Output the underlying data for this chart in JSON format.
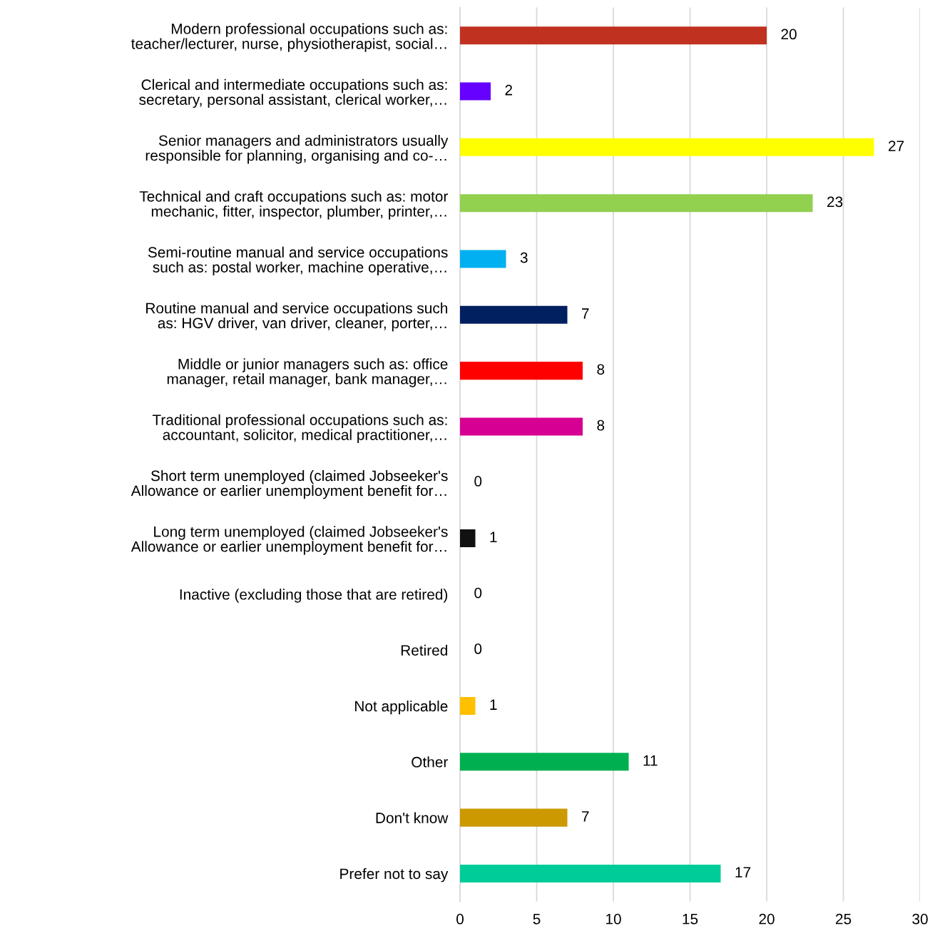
{
  "chart_data": {
    "type": "bar",
    "orientation": "horizontal",
    "categories": [
      "Modern professional occupations such as:\nteacher/lecturer, nurse, physiotherapist, social…",
      "Clerical and intermediate occupations such as:\nsecretary, personal assistant, clerical worker,…",
      "Senior managers and administrators usually\nresponsible for planning, organising and co-…",
      "Technical and craft occupations such as: motor\nmechanic, fitter, inspector, plumber, printer,…",
      "Semi-routine manual and service occupations\nsuch as: postal worker, machine operative,…",
      "Routine manual and service occupations such\nas: HGV driver, van driver, cleaner, porter,…",
      "Middle or junior managers such as: office\nmanager, retail manager, bank manager,…",
      "Traditional professional occupations such as:\naccountant, solicitor, medical practitioner,…",
      "Short term unemployed (claimed Jobseeker's\nAllowance or earlier unemployment benefit for…",
      "Long term unemployed (claimed Jobseeker's\nAllowance or earlier unemployment benefit for…",
      "Inactive (excluding those that are retired)",
      "Retired",
      "Not applicable",
      "Other",
      "Don't know",
      "Prefer not to say"
    ],
    "values": [
      20,
      2,
      27,
      23,
      3,
      7,
      8,
      8,
      0,
      1,
      0,
      0,
      1,
      11,
      7,
      17
    ],
    "colors": [
      "#c0311f",
      "#6600ff",
      "#ffff00",
      "#92d050",
      "#00b0f0",
      "#002060",
      "#ff0000",
      "#d60093",
      "#a5a5a5",
      "#111111",
      "#a5a5a5",
      "#a5a5a5",
      "#ffc000",
      "#00b050",
      "#cc9900",
      "#00cc99"
    ],
    "xlim": [
      0,
      30
    ],
    "xticks": [
      0,
      5,
      10,
      15,
      20,
      25,
      30
    ],
    "grid": "x",
    "data_labels": true
  }
}
